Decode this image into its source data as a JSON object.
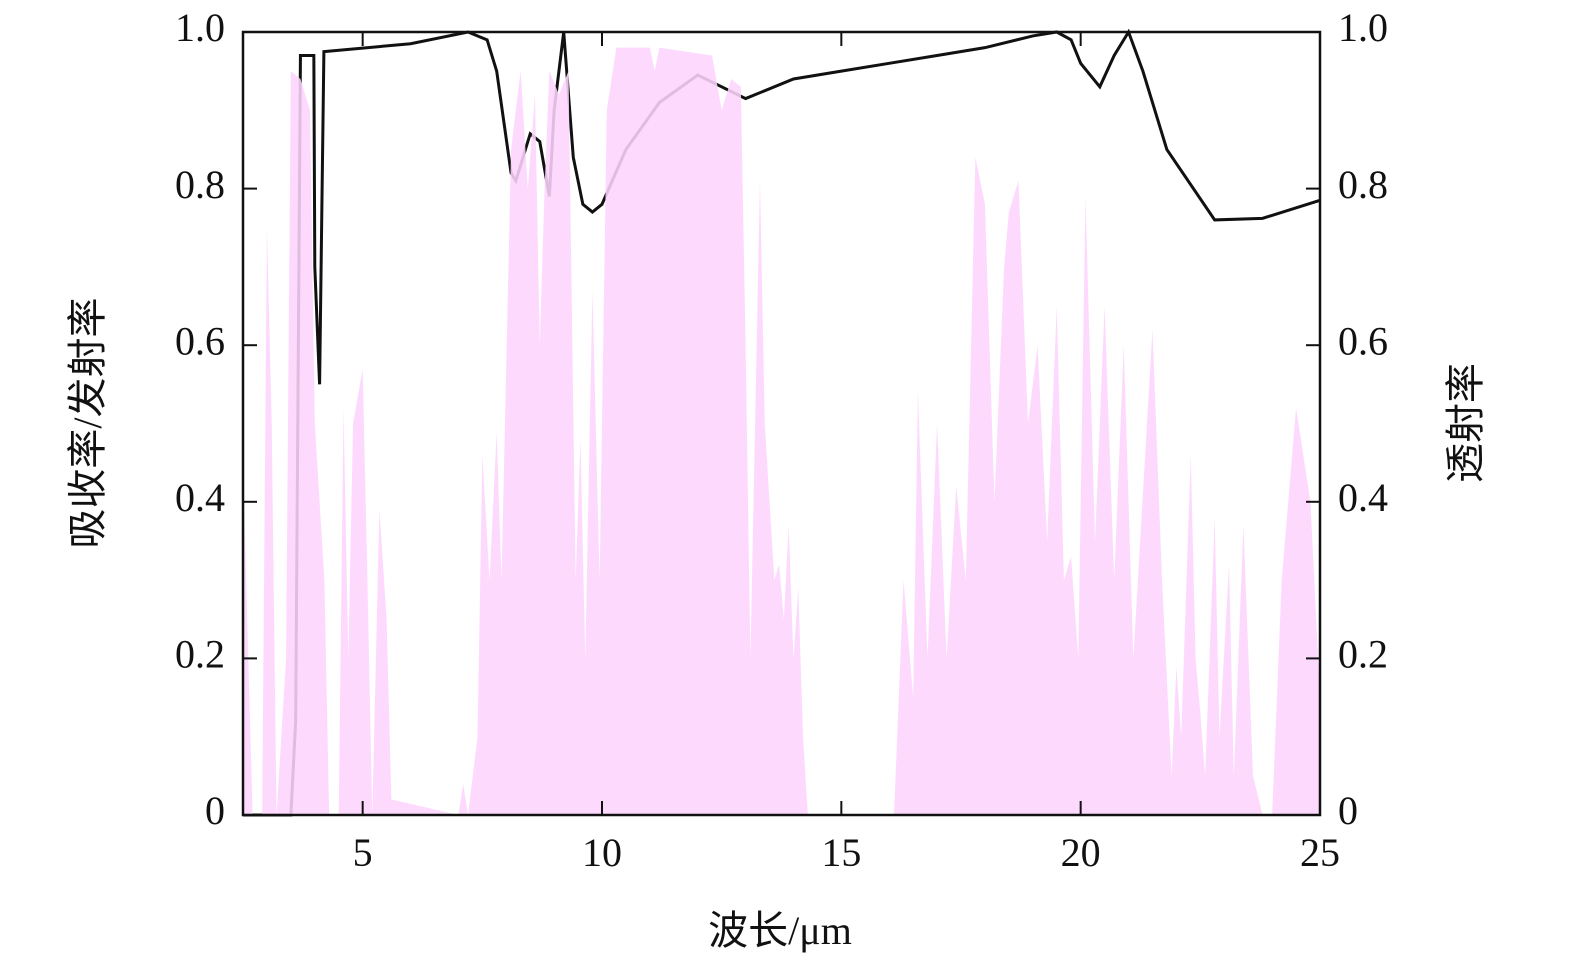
{
  "chart_data": {
    "type": "line",
    "xlabel": "波长/μm",
    "ylabel": "吸收率/发射率",
    "y2label": "透射率",
    "xlim": [
      2.5,
      25
    ],
    "xticks": [
      5,
      10,
      15,
      20,
      25
    ],
    "ylim": [
      0,
      1
    ],
    "yticks": [
      0,
      0.2,
      0.4,
      0.6,
      0.8,
      {
        "value": 1,
        "label": "1.0"
      }
    ],
    "y2lim": [
      0,
      1
    ],
    "y2ticks": [
      0,
      0.2,
      0.4,
      0.6,
      0.8,
      {
        "value": 1,
        "label": "1.0"
      }
    ],
    "series": [
      {
        "kind": "area",
        "axis": "y2",
        "color": "#fdd5fd",
        "x": [
          2.5,
          2.7,
          2.9,
          3.0,
          3.1,
          3.2,
          3.4,
          3.5,
          3.7,
          3.9,
          4.0,
          4.2,
          4.3,
          4.5,
          4.6,
          4.7,
          4.8,
          5.0,
          5.1,
          5.2,
          5.35,
          5.5,
          5.6,
          7.0,
          7.1,
          7.2,
          7.4,
          7.5,
          7.65,
          7.8,
          7.9,
          8.1,
          8.3,
          8.45,
          8.6,
          8.7,
          8.8,
          8.9,
          9.1,
          9.3,
          9.45,
          9.55,
          9.65,
          9.8,
          9.95,
          10.1,
          10.3,
          11.0,
          11.1,
          11.2,
          12.3,
          12.5,
          12.7,
          12.9,
          13.0,
          13.1,
          13.3,
          13.4,
          13.6,
          13.7,
          13.8,
          13.9,
          14.0,
          14.1,
          14.2,
          14.3,
          16.1,
          16.3,
          16.5,
          16.6,
          16.8,
          17.0,
          17.2,
          17.4,
          17.6,
          17.8,
          18.0,
          18.2,
          18.4,
          18.5,
          18.7,
          18.9,
          19.1,
          19.3,
          19.5,
          19.65,
          19.8,
          19.95,
          20.1,
          20.3,
          20.5,
          20.7,
          20.9,
          21.1,
          21.5,
          21.7,
          21.9,
          22.0,
          22.1,
          22.3,
          22.4,
          22.5,
          22.6,
          22.8,
          22.9,
          23.1,
          23.2,
          23.4,
          23.6,
          23.8,
          24.0,
          24.2,
          24.5,
          24.8,
          25
        ],
        "values": [
          0.45,
          0,
          0,
          0.75,
          0.5,
          0,
          0.2,
          0.95,
          0.94,
          0.9,
          0.5,
          0.3,
          0,
          0,
          0.52,
          0.2,
          0.5,
          0.57,
          0.3,
          0,
          0.39,
          0.25,
          0.02,
          0,
          0.04,
          0,
          0.1,
          0.46,
          0.3,
          0.49,
          0.3,
          0.85,
          0.95,
          0.8,
          0.92,
          0.6,
          0.8,
          0.95,
          0.92,
          0.95,
          0.3,
          0.48,
          0.2,
          0.67,
          0.3,
          0.9,
          0.98,
          0.98,
          0.95,
          0.98,
          0.97,
          0.9,
          0.94,
          0.93,
          0.6,
          0.2,
          0.81,
          0.5,
          0.3,
          0.32,
          0.25,
          0.37,
          0.2,
          0.29,
          0.1,
          0,
          0,
          0.3,
          0.15,
          0.54,
          0.2,
          0.5,
          0.2,
          0.42,
          0.3,
          0.84,
          0.78,
          0.4,
          0.7,
          0.77,
          0.81,
          0.5,
          0.6,
          0.35,
          0.65,
          0.3,
          0.33,
          0.2,
          0.79,
          0.35,
          0.65,
          0.3,
          0.6,
          0.2,
          0.62,
          0.3,
          0.05,
          0.19,
          0.1,
          0.46,
          0.2,
          0.13,
          0.05,
          0.38,
          0.1,
          0.32,
          0.05,
          0.37,
          0.05,
          0,
          0,
          0.3,
          0.52,
          0.4,
          0.15
        ]
      },
      {
        "kind": "line",
        "color": "#111111",
        "x": [
          2.5,
          3.5,
          3.6,
          3.7,
          3.98,
          4.0,
          4.1,
          4.19,
          6,
          7.2,
          7.6,
          7.8,
          8.1,
          8.2,
          8.5,
          8.7,
          8.9,
          9.0,
          9.2,
          9.4,
          9.6,
          9.8,
          10.0,
          10.5,
          11.2,
          12.0,
          12.5,
          13.0,
          14,
          15,
          16,
          17,
          18,
          19,
          19.5,
          19.8,
          20.0,
          20.4,
          20.7,
          21.0,
          21.3,
          21.8,
          22.8,
          23.8,
          25
        ],
        "values": [
          0,
          0,
          0.12,
          0.97,
          0.97,
          0.7,
          0.55,
          0.975,
          0.985,
          1.0,
          0.99,
          0.95,
          0.82,
          0.81,
          0.87,
          0.86,
          0.79,
          0.9,
          1.0,
          0.84,
          0.78,
          0.77,
          0.78,
          0.85,
          0.91,
          0.945,
          0.93,
          0.915,
          0.94,
          0.95,
          0.96,
          0.97,
          0.98,
          0.995,
          1.0,
          0.99,
          0.96,
          0.93,
          0.97,
          1.0,
          0.95,
          0.85,
          0.76,
          0.762,
          0.785
        ]
      }
    ]
  }
}
